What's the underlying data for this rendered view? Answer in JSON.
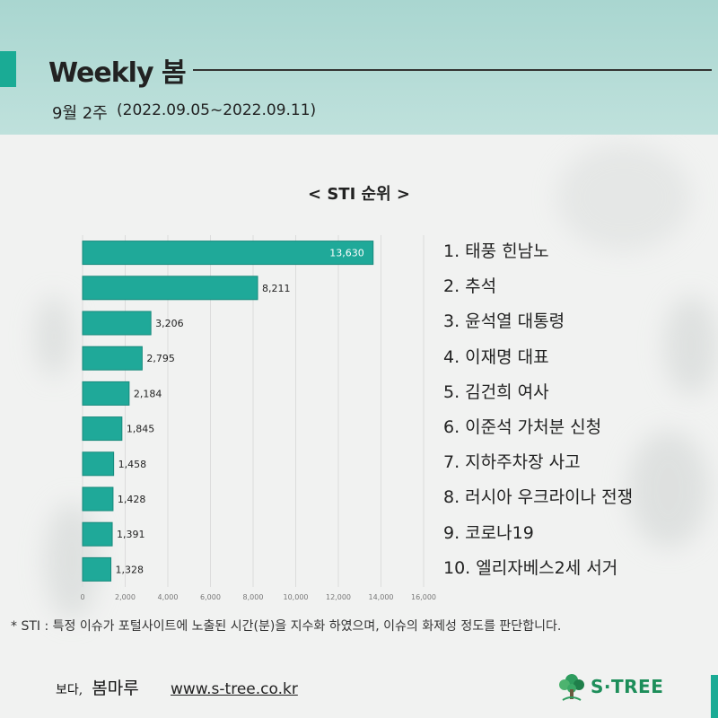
{
  "header": {
    "title": "Weekly 봄",
    "week": "9월 2주",
    "date_range": "(2022.09.05~2022.09.11)"
  },
  "chart_data": {
    "type": "bar",
    "orientation": "horizontal",
    "title": "< STI 순위 >",
    "categories": [
      "1. 태풍 힌남노",
      "2. 추석",
      "3. 윤석열 대통령",
      "4. 이재명 대표",
      "5. 김건희 여사",
      "6. 이준석 가처분 신청",
      "7. 지하주차장 사고",
      "8. 러시아 우크라이나 전쟁",
      "9. 코로나19",
      "10. 엘리자베스2세 서거"
    ],
    "values": [
      13630,
      8211,
      3206,
      2795,
      2184,
      1845,
      1458,
      1428,
      1391,
      1328
    ],
    "value_labels": [
      "13,630",
      "8,211",
      "3,206",
      "2,795",
      "2,184",
      "1,845",
      "1,458",
      "1,428",
      "1,391",
      "1,328"
    ],
    "xlim": [
      0,
      16000
    ],
    "x_ticks": [
      0,
      2000,
      4000,
      6000,
      8000,
      10000,
      12000,
      14000,
      16000
    ],
    "x_tick_labels": [
      "0",
      "2,000",
      "4,000",
      "6,000",
      "8,000",
      "10,000",
      "12,000",
      "14,000",
      "16,000"
    ],
    "grid": true,
    "bar_color": "#1fa999",
    "bar_border_color": "#178a7c"
  },
  "footnote": "* STI : 특정 이슈가 포털사이트에 노출된 시간(분)을 지수화 하였으며, 이슈의 화제성 정도를 판단합니다.",
  "footer": {
    "brand_sub": "보다,",
    "brand_main": "봄마루",
    "website": "www.s-tree.co.kr",
    "logo_name": "S·TREE",
    "logo_icon": "tree-icon"
  },
  "colors": {
    "accent": "#1aab95",
    "header_bg": "#b5ddd7",
    "logo_green": "#1d8e5a"
  }
}
